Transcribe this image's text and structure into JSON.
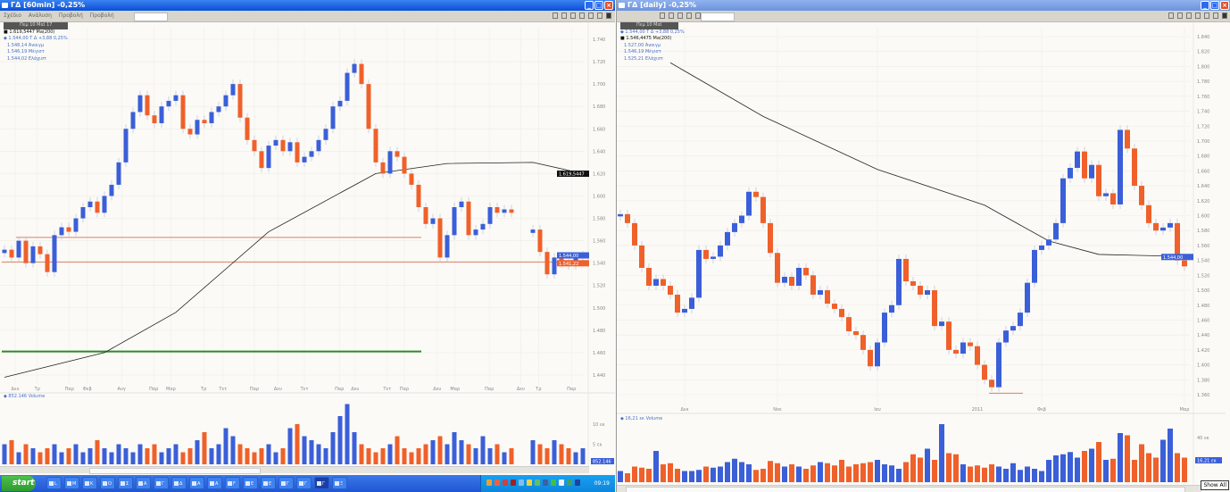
{
  "colors": {
    "up": "#3b5fd9",
    "down": "#f0602a",
    "ma": "#222222",
    "level_red": "#d9806a",
    "level_green": "#2e8b2e"
  },
  "left_window": {
    "title": "ΓΔ [60min] -0,25%",
    "menu": [
      "Σχέδιο",
      "Ανάλυση",
      "Προβολή",
      "Προβολή"
    ],
    "legend": {
      "date": "Πεμ 10 Μαϊ 17",
      "ma": "■ 1.619,5447 Ma(200)",
      "last": "◆ 1.544,00 Τ Δ +3,88 0,25%",
      "open": "1.548,14 Άνοιγμ",
      "high": "1.546,19 Μέγιστ",
      "low": "1.544,02 Ελάχιστ"
    },
    "volume_legend": "◆ 852.146 Volume",
    "price_labels": {
      "ma": "1.619,5447",
      "last": "1.544,00",
      "prev": "1.541,22"
    },
    "volume_label": "852.146"
  },
  "right_window": {
    "title": "ΓΔ [daily] -0,25%",
    "legend": {
      "date": "Πεμ 10 Μαϊ",
      "last": "◆ 1.544,00 Τ Δ +3,88 0,25%",
      "ma": "■ 1.546,4475 Ma(200)",
      "open": "1.527,00 Άνοιγμ",
      "high": "1.546,19 Μέγιστ",
      "low": "1.525,21 Ελάχιστ"
    },
    "volume_legend": "◆ 16,21 εκ Volume",
    "price_labels": {
      "last": "1.544,00"
    },
    "volume_label": "16,21 εκ",
    "show_all": "Show All"
  },
  "chart_data": [
    {
      "type": "candlestick",
      "interval": "60min",
      "ylim": [
        1.43,
        1.75
      ],
      "yticks": [
        "1.740",
        "1.720",
        "1.700",
        "1.680",
        "1.660",
        "1.640",
        "1.620",
        "1.600",
        "1.580",
        "1.560",
        "1.540",
        "1.520",
        "1.500",
        "1.480",
        "1.460",
        "1.440"
      ],
      "xticks": [
        [
          1.5,
          "Δευ"
        ],
        [
          4.6,
          "Τρ"
        ],
        [
          9.1,
          "Παρ"
        ],
        [
          11.6,
          "Φεβ"
        ],
        [
          16.4,
          "Αυγ"
        ],
        [
          20.9,
          "Παρ"
        ],
        [
          23.3,
          "Μαρ"
        ],
        [
          27.9,
          "Τρ"
        ],
        [
          30.6,
          "Τετ"
        ],
        [
          35,
          "Παρ"
        ],
        [
          38.3,
          "Δευ"
        ],
        [
          42,
          "Τετ"
        ],
        [
          46.9,
          "Παρ"
        ],
        [
          49.1,
          "Δευ"
        ],
        [
          53.6,
          "Τετ"
        ],
        [
          56,
          "Παρ"
        ],
        [
          60.6,
          "Δευ"
        ],
        [
          63.1,
          "Μαρ"
        ],
        [
          67.9,
          "Παρ"
        ],
        [
          72.3,
          "Δευ"
        ],
        [
          74.8,
          "Τρ"
        ],
        [
          79.4,
          "Παρ"
        ]
      ],
      "closes": [
        1.552,
        1.545,
        1.56,
        1.54,
        1.555,
        1.548,
        1.532,
        1.565,
        1.572,
        1.568,
        1.58,
        1.59,
        1.595,
        1.585,
        1.6,
        1.61,
        1.63,
        1.66,
        1.675,
        1.69,
        1.672,
        1.665,
        1.68,
        1.685,
        1.69,
        1.66,
        1.655,
        1.668,
        1.665,
        1.675,
        1.68,
        1.69,
        1.7,
        1.67,
        1.65,
        1.64,
        1.625,
        1.645,
        1.65,
        1.64,
        1.648,
        1.63,
        1.635,
        1.64,
        1.65,
        1.66,
        1.68,
        1.685,
        1.71,
        1.718,
        1.7,
        1.66,
        1.63,
        1.62,
        1.64,
        1.635,
        1.62,
        1.61,
        1.59,
        1.575,
        1.58,
        1.545,
        1.565,
        1.59,
        1.595,
        1.565,
        1.57,
        1.575,
        1.59,
        1.585,
        1.588,
        1.585,
        null,
        null,
        1.57,
        1.55,
        1.53,
        1.545,
        1.54,
        1.538,
        1.545,
        1.547
      ],
      "ma200": [
        [
          0,
          1.438
        ],
        [
          14,
          1.46
        ],
        [
          24,
          1.496
        ],
        [
          37,
          1.568
        ],
        [
          52,
          1.62
        ],
        [
          62,
          1.629
        ],
        [
          74,
          1.63
        ],
        [
          81,
          1.62
        ]
      ],
      "levels": [
        {
          "price": 1.563,
          "from": 2,
          "to": 58,
          "color": "level_red"
        },
        {
          "price": 1.541,
          "from": 0,
          "to": 81,
          "color": "level_red"
        },
        {
          "price": 1.461,
          "from": 0,
          "to": 58,
          "color": "level_green"
        }
      ],
      "volume_ticks": [
        [
          10,
          "10 εκ"
        ],
        [
          5,
          "5 εκ"
        ]
      ],
      "volume": [
        5,
        6,
        3,
        5,
        4,
        3,
        4,
        5,
        3,
        4,
        5,
        3,
        4,
        6,
        4,
        3,
        5,
        4,
        3,
        5,
        4,
        5,
        3,
        4,
        5,
        3,
        4,
        6,
        8,
        4,
        5,
        9,
        7,
        5,
        4,
        3,
        4,
        5,
        3,
        4,
        9,
        10,
        7,
        6,
        5,
        4,
        8,
        12,
        15,
        8,
        5,
        4,
        3,
        4,
        5,
        7,
        4,
        3,
        4,
        5,
        6,
        7,
        5,
        8,
        6,
        5,
        4,
        7,
        4,
        5,
        3,
        4,
        null,
        null,
        6,
        5,
        4,
        6,
        5,
        4,
        3,
        4
      ]
    },
    {
      "type": "candlestick",
      "interval": "daily",
      "ylim": [
        1.35,
        1.85
      ],
      "yticks": [
        "1.840",
        "1.820",
        "1.800",
        "1.780",
        "1.760",
        "1.740",
        "1.720",
        "1.700",
        "1.680",
        "1.660",
        "1.640",
        "1.620",
        "1.600",
        "1.580",
        "1.560",
        "1.540",
        "1.520",
        "1.500",
        "1.480",
        "1.460",
        "1.440",
        "1.420",
        "1.400",
        "1.380",
        "1.360"
      ],
      "xticks": [
        [
          9,
          "Δεκ"
        ],
        [
          22,
          "Νοε"
        ],
        [
          36,
          "Ιαν"
        ],
        [
          50,
          "2011"
        ],
        [
          59,
          "Φεβ"
        ],
        [
          79,
          "Μαρ"
        ]
      ],
      "closes": [
        1.602,
        1.59,
        1.56,
        1.53,
        1.506,
        1.515,
        1.506,
        1.494,
        1.47,
        1.475,
        1.49,
        1.554,
        1.542,
        1.545,
        1.56,
        1.578,
        1.59,
        1.6,
        1.632,
        1.625,
        1.59,
        1.55,
        1.51,
        1.518,
        1.506,
        1.53,
        1.52,
        1.494,
        1.5,
        1.482,
        1.475,
        1.464,
        1.445,
        1.44,
        1.42,
        1.398,
        1.43,
        1.47,
        1.48,
        1.542,
        1.512,
        1.506,
        1.494,
        1.5,
        1.452,
        1.458,
        1.42,
        1.415,
        1.43,
        1.425,
        1.4,
        1.38,
        1.37,
        1.43,
        1.446,
        1.452,
        1.47,
        1.51,
        1.554,
        1.56,
        1.568,
        1.59,
        1.65,
        1.664,
        1.686,
        1.65,
        1.668,
        1.626,
        1.63,
        1.615,
        1.715,
        1.69,
        1.64,
        1.614,
        1.59,
        1.58,
        1.584,
        1.59,
        1.54,
        1.532
      ],
      "ma200": [
        [
          7,
          1.805
        ],
        [
          20,
          1.733
        ],
        [
          36,
          1.662
        ],
        [
          51,
          1.614
        ],
        [
          60,
          1.566
        ],
        [
          67,
          1.548
        ],
        [
          76,
          1.546
        ],
        [
          80,
          1.542
        ]
      ],
      "levels": [
        {
          "price": 1.362,
          "from": 52,
          "to": 56,
          "color": "level_red"
        }
      ],
      "volume_ticks": [
        [
          40,
          "40 εκ"
        ]
      ],
      "volume": [
        10,
        8,
        14,
        13,
        12,
        28,
        16,
        17,
        12,
        10,
        10,
        11,
        14,
        13,
        14,
        18,
        21,
        18,
        16,
        11,
        12,
        19,
        17,
        14,
        16,
        14,
        12,
        15,
        18,
        17,
        15,
        20,
        14,
        16,
        17,
        18,
        20,
        16,
        15,
        12,
        18,
        25,
        22,
        30,
        20,
        52,
        26,
        25,
        16,
        14,
        15,
        13,
        16,
        14,
        12,
        17,
        11,
        14,
        12,
        10,
        20,
        24,
        25,
        27,
        22,
        28,
        30,
        36,
        20,
        21,
        44,
        42,
        20,
        34,
        26,
        22,
        38,
        48,
        26,
        22
      ]
    }
  ],
  "taskbar": {
    "start_label": "start",
    "tasks": [
      "L",
      "M",
      "K",
      "O",
      "Σ",
      "A",
      "Γ",
      "Δ",
      "A",
      "A",
      "F",
      "E",
      "E",
      "Γ",
      "Γ",
      "Γ",
      "Ξ"
    ],
    "clock": "09:19"
  }
}
